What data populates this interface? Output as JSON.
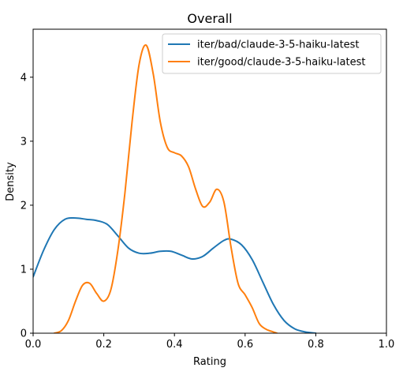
{
  "chart_data": {
    "type": "line",
    "title": "Overall",
    "xlabel": "Rating",
    "ylabel": "Density",
    "xlim": [
      0.0,
      1.0
    ],
    "ylim": [
      0,
      4.75
    ],
    "xticks": [
      0.0,
      0.2,
      0.4,
      0.6,
      0.8,
      1.0
    ],
    "xtick_labels": [
      "0.0",
      "0.2",
      "0.4",
      "0.6",
      "0.8",
      "1.0"
    ],
    "yticks": [
      0,
      1,
      2,
      3,
      4
    ],
    "ytick_labels": [
      "0",
      "1",
      "2",
      "3",
      "4"
    ],
    "grid": false,
    "legend_position": "top-right",
    "series": [
      {
        "name": "iter/bad/claude-3-5-haiku-latest",
        "color": "#1f77b4",
        "x": [
          0.0,
          0.03,
          0.06,
          0.09,
          0.12,
          0.15,
          0.18,
          0.21,
          0.24,
          0.27,
          0.3,
          0.33,
          0.36,
          0.39,
          0.42,
          0.45,
          0.48,
          0.51,
          0.54,
          0.56,
          0.59,
          0.62,
          0.65,
          0.68,
          0.71,
          0.74,
          0.77,
          0.8
        ],
        "y": [
          0.88,
          1.3,
          1.62,
          1.78,
          1.8,
          1.78,
          1.76,
          1.7,
          1.52,
          1.33,
          1.25,
          1.25,
          1.28,
          1.28,
          1.22,
          1.16,
          1.2,
          1.33,
          1.45,
          1.47,
          1.38,
          1.15,
          0.8,
          0.45,
          0.2,
          0.07,
          0.02,
          0.0
        ]
      },
      {
        "name": "iter/good/claude-3-5-haiku-latest",
        "color": "#ff7f0e",
        "x": [
          0.06,
          0.08,
          0.1,
          0.12,
          0.14,
          0.16,
          0.18,
          0.2,
          0.22,
          0.24,
          0.26,
          0.28,
          0.3,
          0.32,
          0.34,
          0.36,
          0.38,
          0.4,
          0.42,
          0.44,
          0.46,
          0.48,
          0.5,
          0.52,
          0.54,
          0.56,
          0.58,
          0.6,
          0.62,
          0.64,
          0.66,
          0.68,
          0.69
        ],
        "y": [
          0.0,
          0.04,
          0.2,
          0.5,
          0.75,
          0.78,
          0.62,
          0.5,
          0.68,
          1.3,
          2.2,
          3.3,
          4.2,
          4.5,
          4.05,
          3.3,
          2.9,
          2.82,
          2.77,
          2.6,
          2.25,
          1.98,
          2.05,
          2.25,
          2.05,
          1.35,
          0.78,
          0.6,
          0.4,
          0.15,
          0.06,
          0.02,
          0.0
        ]
      }
    ]
  }
}
